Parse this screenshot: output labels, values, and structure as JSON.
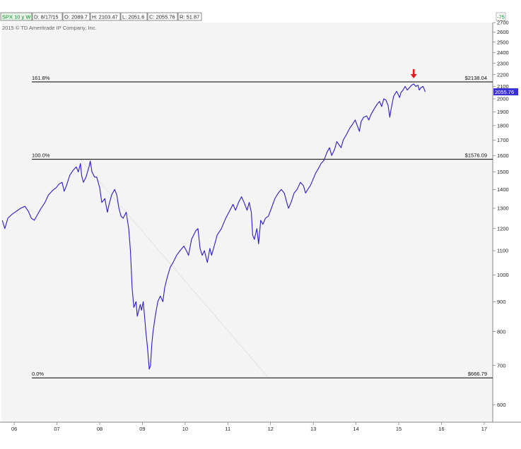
{
  "header": {
    "fields": [
      "SPX 10 y W",
      "D: 8/17/15",
      "O: 2089.7",
      "H: 2103.47",
      "L: 2051.6",
      "C: 2055.76",
      "R: 51.87"
    ],
    "copyright": "2015 © TD Ameritrade IP Company, Inc.",
    "corner_button": "-75"
  },
  "colors": {
    "price": "#2a1bd4",
    "plot_bg": "#f4f4f4",
    "arrow": "#e0191f",
    "level_line": "#000000",
    "last_price_badge": "#3a2fd6",
    "symbol_box": "#e8f6e8",
    "symbol_text": "#0a8a2a"
  },
  "chart_data": {
    "type": "line",
    "title": "SPX 10 y W",
    "y_scale": "log",
    "ylim": [
      560,
      2700
    ],
    "xlim": [
      2005.7,
      2017.2
    ],
    "x_ticks": [
      {
        "x": 2006,
        "label": "06"
      },
      {
        "x": 2007,
        "label": "07"
      },
      {
        "x": 2008,
        "label": "08"
      },
      {
        "x": 2009,
        "label": "09"
      },
      {
        "x": 2010,
        "label": "10"
      },
      {
        "x": 2011,
        "label": "11"
      },
      {
        "x": 2012,
        "label": "12"
      },
      {
        "x": 2013,
        "label": "13"
      },
      {
        "x": 2014,
        "label": "14"
      },
      {
        "x": 2015,
        "label": "15"
      },
      {
        "x": 2016,
        "label": "16"
      },
      {
        "x": 2017,
        "label": "17"
      }
    ],
    "y_ticks": [
      {
        "v": 600,
        "label": "600"
      },
      {
        "v": 700,
        "label": "700"
      },
      {
        "v": 800,
        "label": "800"
      },
      {
        "v": 900,
        "label": "900"
      },
      {
        "v": 1000,
        "label": "1000"
      },
      {
        "v": 1100,
        "label": "1100"
      },
      {
        "v": 1200,
        "label": "1200"
      },
      {
        "v": 1300,
        "label": "1300"
      },
      {
        "v": 1400,
        "label": "1400"
      },
      {
        "v": 1500,
        "label": "1500"
      },
      {
        "v": 1600,
        "label": "1600"
      },
      {
        "v": 1700,
        "label": "1700"
      },
      {
        "v": 1800,
        "label": "1800"
      },
      {
        "v": 1900,
        "label": "1900"
      },
      {
        "v": 2000,
        "label": "2000"
      },
      {
        "v": 2100,
        "label": "2100"
      },
      {
        "v": 2200,
        "label": "2200"
      },
      {
        "v": 2300,
        "label": "2300"
      },
      {
        "v": 2400,
        "label": "2400"
      },
      {
        "v": 2500,
        "label": "2500"
      },
      {
        "v": 2600,
        "label": "2600"
      },
      {
        "v": 2700,
        "label": "2700"
      }
    ],
    "fib_levels": [
      {
        "pct_label": "161.8%",
        "value": 2138.04,
        "value_label": "$2138.04"
      },
      {
        "pct_label": "100.0%",
        "value": 1576.09,
        "value_label": "$1576.09"
      },
      {
        "pct_label": "0.0%",
        "value": 666.79,
        "value_label": "$666.79"
      }
    ],
    "fib_anchor_line": {
      "from": [
        2007.55,
        1576.09
      ],
      "to": [
        2011.95,
        666.79
      ]
    },
    "last_price": {
      "value": 2055.76,
      "label": "2055.76"
    },
    "marker": {
      "type": "down-arrow",
      "x": 2015.35,
      "above_value": 2138.04
    },
    "series": [
      {
        "points": [
          [
            2005.72,
            1240
          ],
          [
            2005.78,
            1200
          ],
          [
            2005.85,
            1250
          ],
          [
            2005.95,
            1270
          ],
          [
            2006.05,
            1285
          ],
          [
            2006.15,
            1300
          ],
          [
            2006.25,
            1310
          ],
          [
            2006.33,
            1285
          ],
          [
            2006.4,
            1250
          ],
          [
            2006.47,
            1240
          ],
          [
            2006.55,
            1270
          ],
          [
            2006.63,
            1300
          ],
          [
            2006.72,
            1330
          ],
          [
            2006.8,
            1370
          ],
          [
            2006.9,
            1395
          ],
          [
            2006.98,
            1410
          ],
          [
            2007.05,
            1430
          ],
          [
            2007.12,
            1440
          ],
          [
            2007.17,
            1390
          ],
          [
            2007.22,
            1420
          ],
          [
            2007.3,
            1480
          ],
          [
            2007.38,
            1510
          ],
          [
            2007.45,
            1530
          ],
          [
            2007.5,
            1500
          ],
          [
            2007.55,
            1550
          ],
          [
            2007.58,
            1475
          ],
          [
            2007.62,
            1440
          ],
          [
            2007.68,
            1470
          ],
          [
            2007.75,
            1530
          ],
          [
            2007.78,
            1565
          ],
          [
            2007.82,
            1500
          ],
          [
            2007.88,
            1470
          ],
          [
            2007.93,
            1470
          ],
          [
            2008.0,
            1410
          ],
          [
            2008.05,
            1330
          ],
          [
            2008.12,
            1350
          ],
          [
            2008.18,
            1280
          ],
          [
            2008.22,
            1320
          ],
          [
            2008.28,
            1370
          ],
          [
            2008.35,
            1400
          ],
          [
            2008.4,
            1370
          ],
          [
            2008.45,
            1300
          ],
          [
            2008.5,
            1260
          ],
          [
            2008.55,
            1250
          ],
          [
            2008.62,
            1280
          ],
          [
            2008.68,
            1200
          ],
          [
            2008.72,
            1100
          ],
          [
            2008.76,
            950
          ],
          [
            2008.8,
            880
          ],
          [
            2008.85,
            900
          ],
          [
            2008.88,
            850
          ],
          [
            2008.95,
            890
          ],
          [
            2008.98,
            870
          ],
          [
            2009.02,
            900
          ],
          [
            2009.05,
            850
          ],
          [
            2009.08,
            800
          ],
          [
            2009.12,
            750
          ],
          [
            2009.16,
            690
          ],
          [
            2009.19,
            700
          ],
          [
            2009.22,
            760
          ],
          [
            2009.25,
            800
          ],
          [
            2009.3,
            850
          ],
          [
            2009.36,
            900
          ],
          [
            2009.42,
            920
          ],
          [
            2009.48,
            900
          ],
          [
            2009.52,
            950
          ],
          [
            2009.58,
            990
          ],
          [
            2009.65,
            1030
          ],
          [
            2009.72,
            1050
          ],
          [
            2009.8,
            1080
          ],
          [
            2009.88,
            1100
          ],
          [
            2009.97,
            1120
          ],
          [
            2010.03,
            1100
          ],
          [
            2010.08,
            1080
          ],
          [
            2010.15,
            1150
          ],
          [
            2010.25,
            1190
          ],
          [
            2010.3,
            1200
          ],
          [
            2010.35,
            1110
          ],
          [
            2010.4,
            1080
          ],
          [
            2010.45,
            1100
          ],
          [
            2010.52,
            1050
          ],
          [
            2010.58,
            1110
          ],
          [
            2010.62,
            1080
          ],
          [
            2010.68,
            1120
          ],
          [
            2010.75,
            1170
          ],
          [
            2010.85,
            1200
          ],
          [
            2010.95,
            1250
          ],
          [
            2011.05,
            1290
          ],
          [
            2011.12,
            1320
          ],
          [
            2011.18,
            1290
          ],
          [
            2011.25,
            1330
          ],
          [
            2011.32,
            1360
          ],
          [
            2011.38,
            1330
          ],
          [
            2011.45,
            1290
          ],
          [
            2011.5,
            1330
          ],
          [
            2011.55,
            1280
          ],
          [
            2011.58,
            1170
          ],
          [
            2011.62,
            1150
          ],
          [
            2011.68,
            1200
          ],
          [
            2011.72,
            1130
          ],
          [
            2011.77,
            1240
          ],
          [
            2011.82,
            1220
          ],
          [
            2011.88,
            1250
          ],
          [
            2011.95,
            1260
          ],
          [
            2012.02,
            1300
          ],
          [
            2012.1,
            1350
          ],
          [
            2012.18,
            1380
          ],
          [
            2012.25,
            1400
          ],
          [
            2012.32,
            1380
          ],
          [
            2012.38,
            1330
          ],
          [
            2012.42,
            1300
          ],
          [
            2012.48,
            1330
          ],
          [
            2012.55,
            1380
          ],
          [
            2012.62,
            1400
          ],
          [
            2012.7,
            1440
          ],
          [
            2012.77,
            1420
          ],
          [
            2012.82,
            1380
          ],
          [
            2012.87,
            1400
          ],
          [
            2012.93,
            1420
          ],
          [
            2013.0,
            1460
          ],
          [
            2013.05,
            1490
          ],
          [
            2013.12,
            1520
          ],
          [
            2013.18,
            1550
          ],
          [
            2013.25,
            1570
          ],
          [
            2013.32,
            1620
          ],
          [
            2013.38,
            1650
          ],
          [
            2013.43,
            1600
          ],
          [
            2013.5,
            1640
          ],
          [
            2013.55,
            1690
          ],
          [
            2013.6,
            1670
          ],
          [
            2013.65,
            1650
          ],
          [
            2013.7,
            1700
          ],
          [
            2013.78,
            1740
          ],
          [
            2013.85,
            1780
          ],
          [
            2013.92,
            1810
          ],
          [
            2013.98,
            1840
          ],
          [
            2014.03,
            1800
          ],
          [
            2014.08,
            1760
          ],
          [
            2014.12,
            1830
          ],
          [
            2014.18,
            1860
          ],
          [
            2014.25,
            1870
          ],
          [
            2014.3,
            1840
          ],
          [
            2014.35,
            1880
          ],
          [
            2014.42,
            1920
          ],
          [
            2014.5,
            1960
          ],
          [
            2014.55,
            1980
          ],
          [
            2014.6,
            1940
          ],
          [
            2014.65,
            2000
          ],
          [
            2014.7,
            1990
          ],
          [
            2014.75,
            1950
          ],
          [
            2014.79,
            1860
          ],
          [
            2014.82,
            1920
          ],
          [
            2014.88,
            2020
          ],
          [
            2014.95,
            2060
          ],
          [
            2014.98,
            2040
          ],
          [
            2015.02,
            2010
          ],
          [
            2015.05,
            2050
          ],
          [
            2015.1,
            2070
          ],
          [
            2015.15,
            2100
          ],
          [
            2015.2,
            2070
          ],
          [
            2015.25,
            2090
          ],
          [
            2015.3,
            2110
          ],
          [
            2015.35,
            2120
          ],
          [
            2015.4,
            2100
          ],
          [
            2015.45,
            2110
          ],
          [
            2015.48,
            2070
          ],
          [
            2015.52,
            2090
          ],
          [
            2015.57,
            2100
          ],
          [
            2015.62,
            2056
          ]
        ]
      }
    ]
  }
}
